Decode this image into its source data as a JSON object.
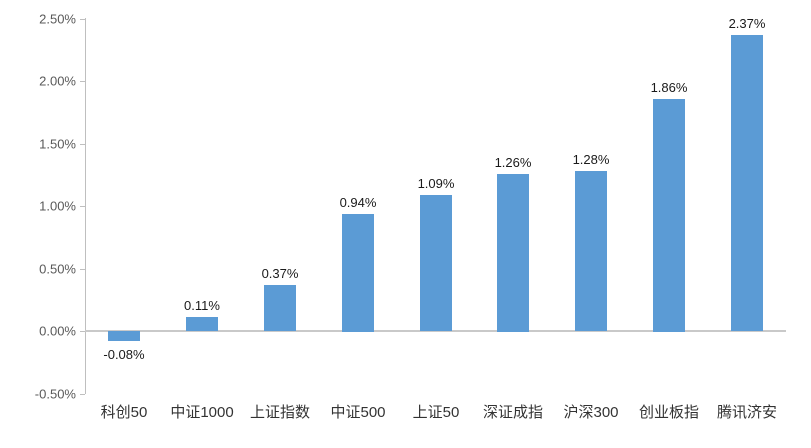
{
  "chart_data": {
    "type": "bar",
    "title": "",
    "xlabel": "",
    "ylabel": "",
    "categories": [
      "科创50",
      "中证1000",
      "上证指数",
      "中证500",
      "上证50",
      "深证成指",
      "沪深300",
      "创业板指",
      "腾讯济安"
    ],
    "values": [
      -0.08,
      0.11,
      0.37,
      0.94,
      1.09,
      1.26,
      1.28,
      1.86,
      2.37
    ],
    "data_labels": [
      "-0.08%",
      "0.11%",
      "0.37%",
      "0.94%",
      "1.09%",
      "1.26%",
      "1.28%",
      "1.86%",
      "2.37%"
    ],
    "ylim": [
      -0.5,
      2.5
    ],
    "ytick_values": [
      2.5,
      2.0,
      1.5,
      1.0,
      0.5,
      0.0,
      -0.5
    ],
    "ytick_labels": [
      "2.50%",
      "2.00%",
      "1.50%",
      "1.00%",
      "0.50%",
      "0.00%",
      "-0.50%"
    ],
    "grid": "off",
    "legend": "none",
    "bar_color": "#5B9BD5",
    "axis_color": "#BFBFBF",
    "zero_line_color": "#C9C9C9",
    "ylabel_color": "#595959",
    "data_label_color": "#1A1A1A",
    "category_label_color": "#333333"
  }
}
